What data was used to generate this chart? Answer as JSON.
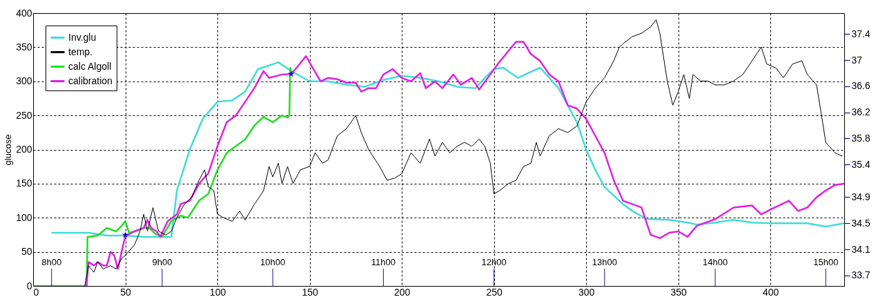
{
  "chart_data": {
    "type": "line",
    "ylabel": "glucose",
    "xlim": [
      0,
      440
    ],
    "xticks": [
      0,
      50,
      100,
      150,
      200,
      250,
      300,
      350,
      400
    ],
    "ylim": [
      0,
      400
    ],
    "yticks": [
      0,
      50,
      100,
      150,
      200,
      250,
      300,
      350,
      400
    ],
    "y2lim": [
      33.54,
      37.72
    ],
    "y2ticks": [
      33.7,
      34.1,
      34.5,
      34.9,
      35.4,
      35.8,
      36.2,
      36.6,
      37,
      37.4
    ],
    "ref_lines": [
      {
        "axis": "x",
        "value": 10,
        "label": "8h00"
      },
      {
        "axis": "x",
        "value": 70,
        "label": "9h00"
      },
      {
        "axis": "x",
        "value": 130,
        "label": "10h00"
      },
      {
        "axis": "x",
        "value": 190,
        "label": "11h00"
      },
      {
        "axis": "x",
        "value": 250,
        "label": "12h00"
      },
      {
        "axis": "x",
        "value": 310,
        "label": "13h00"
      },
      {
        "axis": "x",
        "value": 370,
        "label": "14h00"
      },
      {
        "axis": "x",
        "value": 430,
        "label": "15h00"
      }
    ],
    "grid": true,
    "legend": "top left",
    "line_style": "solid",
    "series": [
      {
        "name": "Inv.glu",
        "color": "#40dcd8",
        "x": [
          10,
          30,
          35,
          40,
          50,
          60,
          66,
          75,
          78,
          85,
          92,
          100,
          108,
          115,
          122,
          130,
          133,
          140,
          150,
          160,
          170,
          180,
          190,
          200,
          210,
          220,
          230,
          240,
          245,
          250,
          255,
          263,
          275,
          285,
          290,
          295,
          300,
          305,
          310,
          320,
          325,
          333,
          345,
          355,
          360,
          370,
          380,
          390,
          400,
          420,
          430,
          440
        ],
        "values": [
          78,
          78,
          76,
          74,
          74,
          72,
          72,
          72,
          140,
          200,
          245,
          270,
          272,
          285,
          318,
          325,
          328,
          315,
          300,
          300,
          295,
          292,
          302,
          308,
          305,
          300,
          292,
          290,
          305,
          318,
          320,
          305,
          320,
          290,
          265,
          240,
          200,
          170,
          145,
          120,
          110,
          98,
          97,
          93,
          90,
          93,
          97,
          93,
          92,
          92,
          87,
          92
        ]
      },
      {
        "name": "temp.",
        "axis": "y2",
        "color": "#000000",
        "x": [
          28,
          30,
          33,
          35,
          38,
          42,
          45,
          48,
          50,
          55,
          58,
          60,
          62,
          65,
          68,
          72,
          75,
          78,
          82,
          86,
          90,
          93,
          95,
          98,
          100,
          103,
          108,
          112,
          115,
          120,
          125,
          128,
          130,
          133,
          135,
          138,
          141,
          145,
          150,
          153,
          157,
          160,
          165,
          170,
          175,
          178,
          182,
          188,
          192,
          196,
          200,
          205,
          210,
          215,
          218,
          222,
          226,
          230,
          234,
          238,
          242,
          245,
          248,
          250,
          253,
          258,
          262,
          266,
          270,
          273,
          275,
          280,
          285,
          290,
          295,
          298,
          300,
          305,
          310,
          315,
          318,
          320,
          325,
          330,
          335,
          338,
          340,
          344,
          347,
          350,
          353,
          356,
          358,
          362,
          366,
          370,
          375,
          380,
          385,
          390,
          395,
          398,
          403,
          407,
          412,
          417,
          420,
          425,
          428,
          430,
          435,
          439
        ],
        "values": [
          33.54,
          33.85,
          33.75,
          33.91,
          33.8,
          33.85,
          33.8,
          33.96,
          34.01,
          34.17,
          34.38,
          34.64,
          34.38,
          34.74,
          34.38,
          34.32,
          34.38,
          34.59,
          34.79,
          34.9,
          35.16,
          35.32,
          35.06,
          35.0,
          34.64,
          34.59,
          34.53,
          34.69,
          34.55,
          34.79,
          35.0,
          35.37,
          35.21,
          35.42,
          35.11,
          35.37,
          35.11,
          35.32,
          35.37,
          35.58,
          35.42,
          35.47,
          35.84,
          35.95,
          36.15,
          35.89,
          35.63,
          35.37,
          35.16,
          35.19,
          35.26,
          35.58,
          35.42,
          35.79,
          35.53,
          35.74,
          35.58,
          35.68,
          35.74,
          35.68,
          35.79,
          35.68,
          35.42,
          34.95,
          35.0,
          35.11,
          35.16,
          35.37,
          35.42,
          35.74,
          35.53,
          35.84,
          35.95,
          35.89,
          35.99,
          36.21,
          36.36,
          36.57,
          36.73,
          36.99,
          37.2,
          37.25,
          37.36,
          37.41,
          37.51,
          37.62,
          37.41,
          36.68,
          36.31,
          36.52,
          36.78,
          36.41,
          36.78,
          36.68,
          36.68,
          36.62,
          36.62,
          36.68,
          36.78,
          36.99,
          37.2,
          36.94,
          36.88,
          36.73,
          36.94,
          36.99,
          36.78,
          36.62,
          36.1,
          35.74,
          35.58,
          35.53
        ]
      },
      {
        "name": "calc Algoll",
        "color": "#22dd22",
        "x": [
          0,
          29,
          29.5,
          35,
          40,
          45,
          48,
          50,
          52,
          55,
          60,
          63,
          66,
          70,
          75,
          80,
          84,
          90,
          95,
          100,
          105,
          110,
          115,
          120,
          125,
          130,
          135,
          138,
          139,
          139.5,
          140
        ],
        "values": [
          0,
          0,
          72,
          74,
          85,
          80,
          88,
          95,
          78,
          80,
          85,
          85,
          77,
          72,
          95,
          103,
          100,
          125,
          135,
          170,
          195,
          205,
          215,
          235,
          248,
          240,
          250,
          247,
          250,
          320,
          311
        ]
      },
      {
        "name": "calibration",
        "color": "#e020e0",
        "x": [
          29,
          30,
          33,
          35,
          38,
          40,
          42,
          44,
          46,
          48,
          50,
          55,
          60,
          62,
          64,
          67,
          69,
          73,
          78,
          80,
          85,
          90,
          95,
          100,
          105,
          110,
          115,
          120,
          125,
          128,
          135,
          140,
          143,
          148,
          152,
          156,
          160,
          165,
          170,
          175,
          178,
          182,
          186,
          190,
          195,
          200,
          205,
          210,
          213,
          218,
          222,
          228,
          232,
          238,
          242,
          248,
          252,
          258,
          262,
          266,
          270,
          275,
          280,
          285,
          290,
          295,
          300,
          305,
          310,
          315,
          320,
          330,
          335,
          340,
          345,
          350,
          355,
          360,
          370,
          380,
          390,
          395,
          400,
          410,
          415,
          420,
          425,
          430,
          435,
          440
        ],
        "values": [
          0,
          35,
          30,
          35,
          30,
          30,
          50,
          45,
          25,
          50,
          73,
          80,
          85,
          97,
          85,
          80,
          72,
          95,
          105,
          120,
          125,
          150,
          165,
          205,
          240,
          250,
          270,
          290,
          315,
          305,
          310,
          311,
          320,
          337,
          318,
          300,
          305,
          303,
          298,
          298,
          285,
          290,
          290,
          310,
          318,
          305,
          300,
          312,
          290,
          300,
          290,
          310,
          295,
          305,
          288,
          310,
          325,
          345,
          358,
          358,
          340,
          330,
          310,
          300,
          265,
          260,
          245,
          220,
          195,
          155,
          125,
          115,
          75,
          70,
          78,
          80,
          72,
          88,
          98,
          115,
          118,
          105,
          112,
          125,
          110,
          115,
          130,
          140,
          148,
          150
        ]
      },
      {
        "type": "scatter",
        "marker": "star",
        "color": "#1010c0",
        "x": [
          50,
          140
        ],
        "values": [
          75,
          311
        ]
      }
    ]
  }
}
